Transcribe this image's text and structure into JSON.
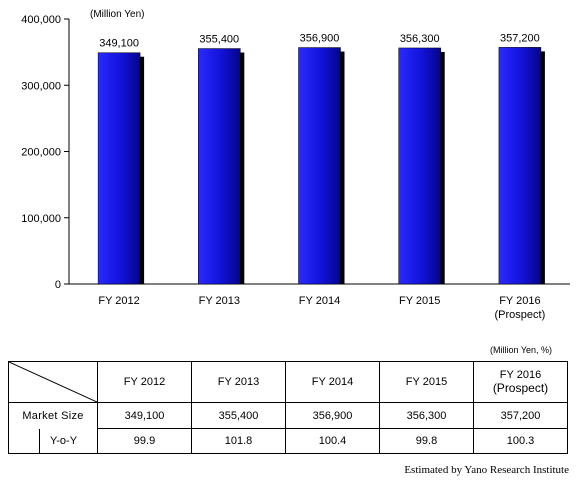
{
  "chart_data": {
    "type": "bar",
    "unit_label": "(Million Yen)",
    "categories": [
      "FY 2012",
      "FY 2013",
      "FY 2014",
      "FY 2015",
      "FY 2016"
    ],
    "category_sublabels": [
      "",
      "",
      "",
      "",
      "(Prospect)"
    ],
    "values": [
      349100,
      355400,
      356900,
      356300,
      357200
    ],
    "value_labels": [
      "349,100",
      "355,400",
      "356,900",
      "356,300",
      "357,200"
    ],
    "ylim": [
      0,
      400000
    ],
    "yticks": [
      0,
      100000,
      200000,
      300000,
      400000
    ],
    "ytick_labels": [
      "0",
      "100,000",
      "200,000",
      "300,000",
      "400,000"
    ],
    "bar_color": "#1010e0",
    "grid": false
  },
  "table": {
    "unit": "(Million Yen, %)",
    "headers": [
      "FY 2012",
      "FY 2013",
      "FY 2014",
      "FY 2015",
      "FY 2016"
    ],
    "header_sub": "(Prospect)",
    "rows": [
      {
        "label": "Market Size",
        "values": [
          "349,100",
          "355,400",
          "356,900",
          "356,300",
          "357,200"
        ]
      },
      {
        "label": "Y-o-Y",
        "values": [
          "99.9",
          "101.8",
          "100.4",
          "99.8",
          "100.3"
        ]
      }
    ]
  },
  "credit": "Estimated by Yano Research Institute"
}
